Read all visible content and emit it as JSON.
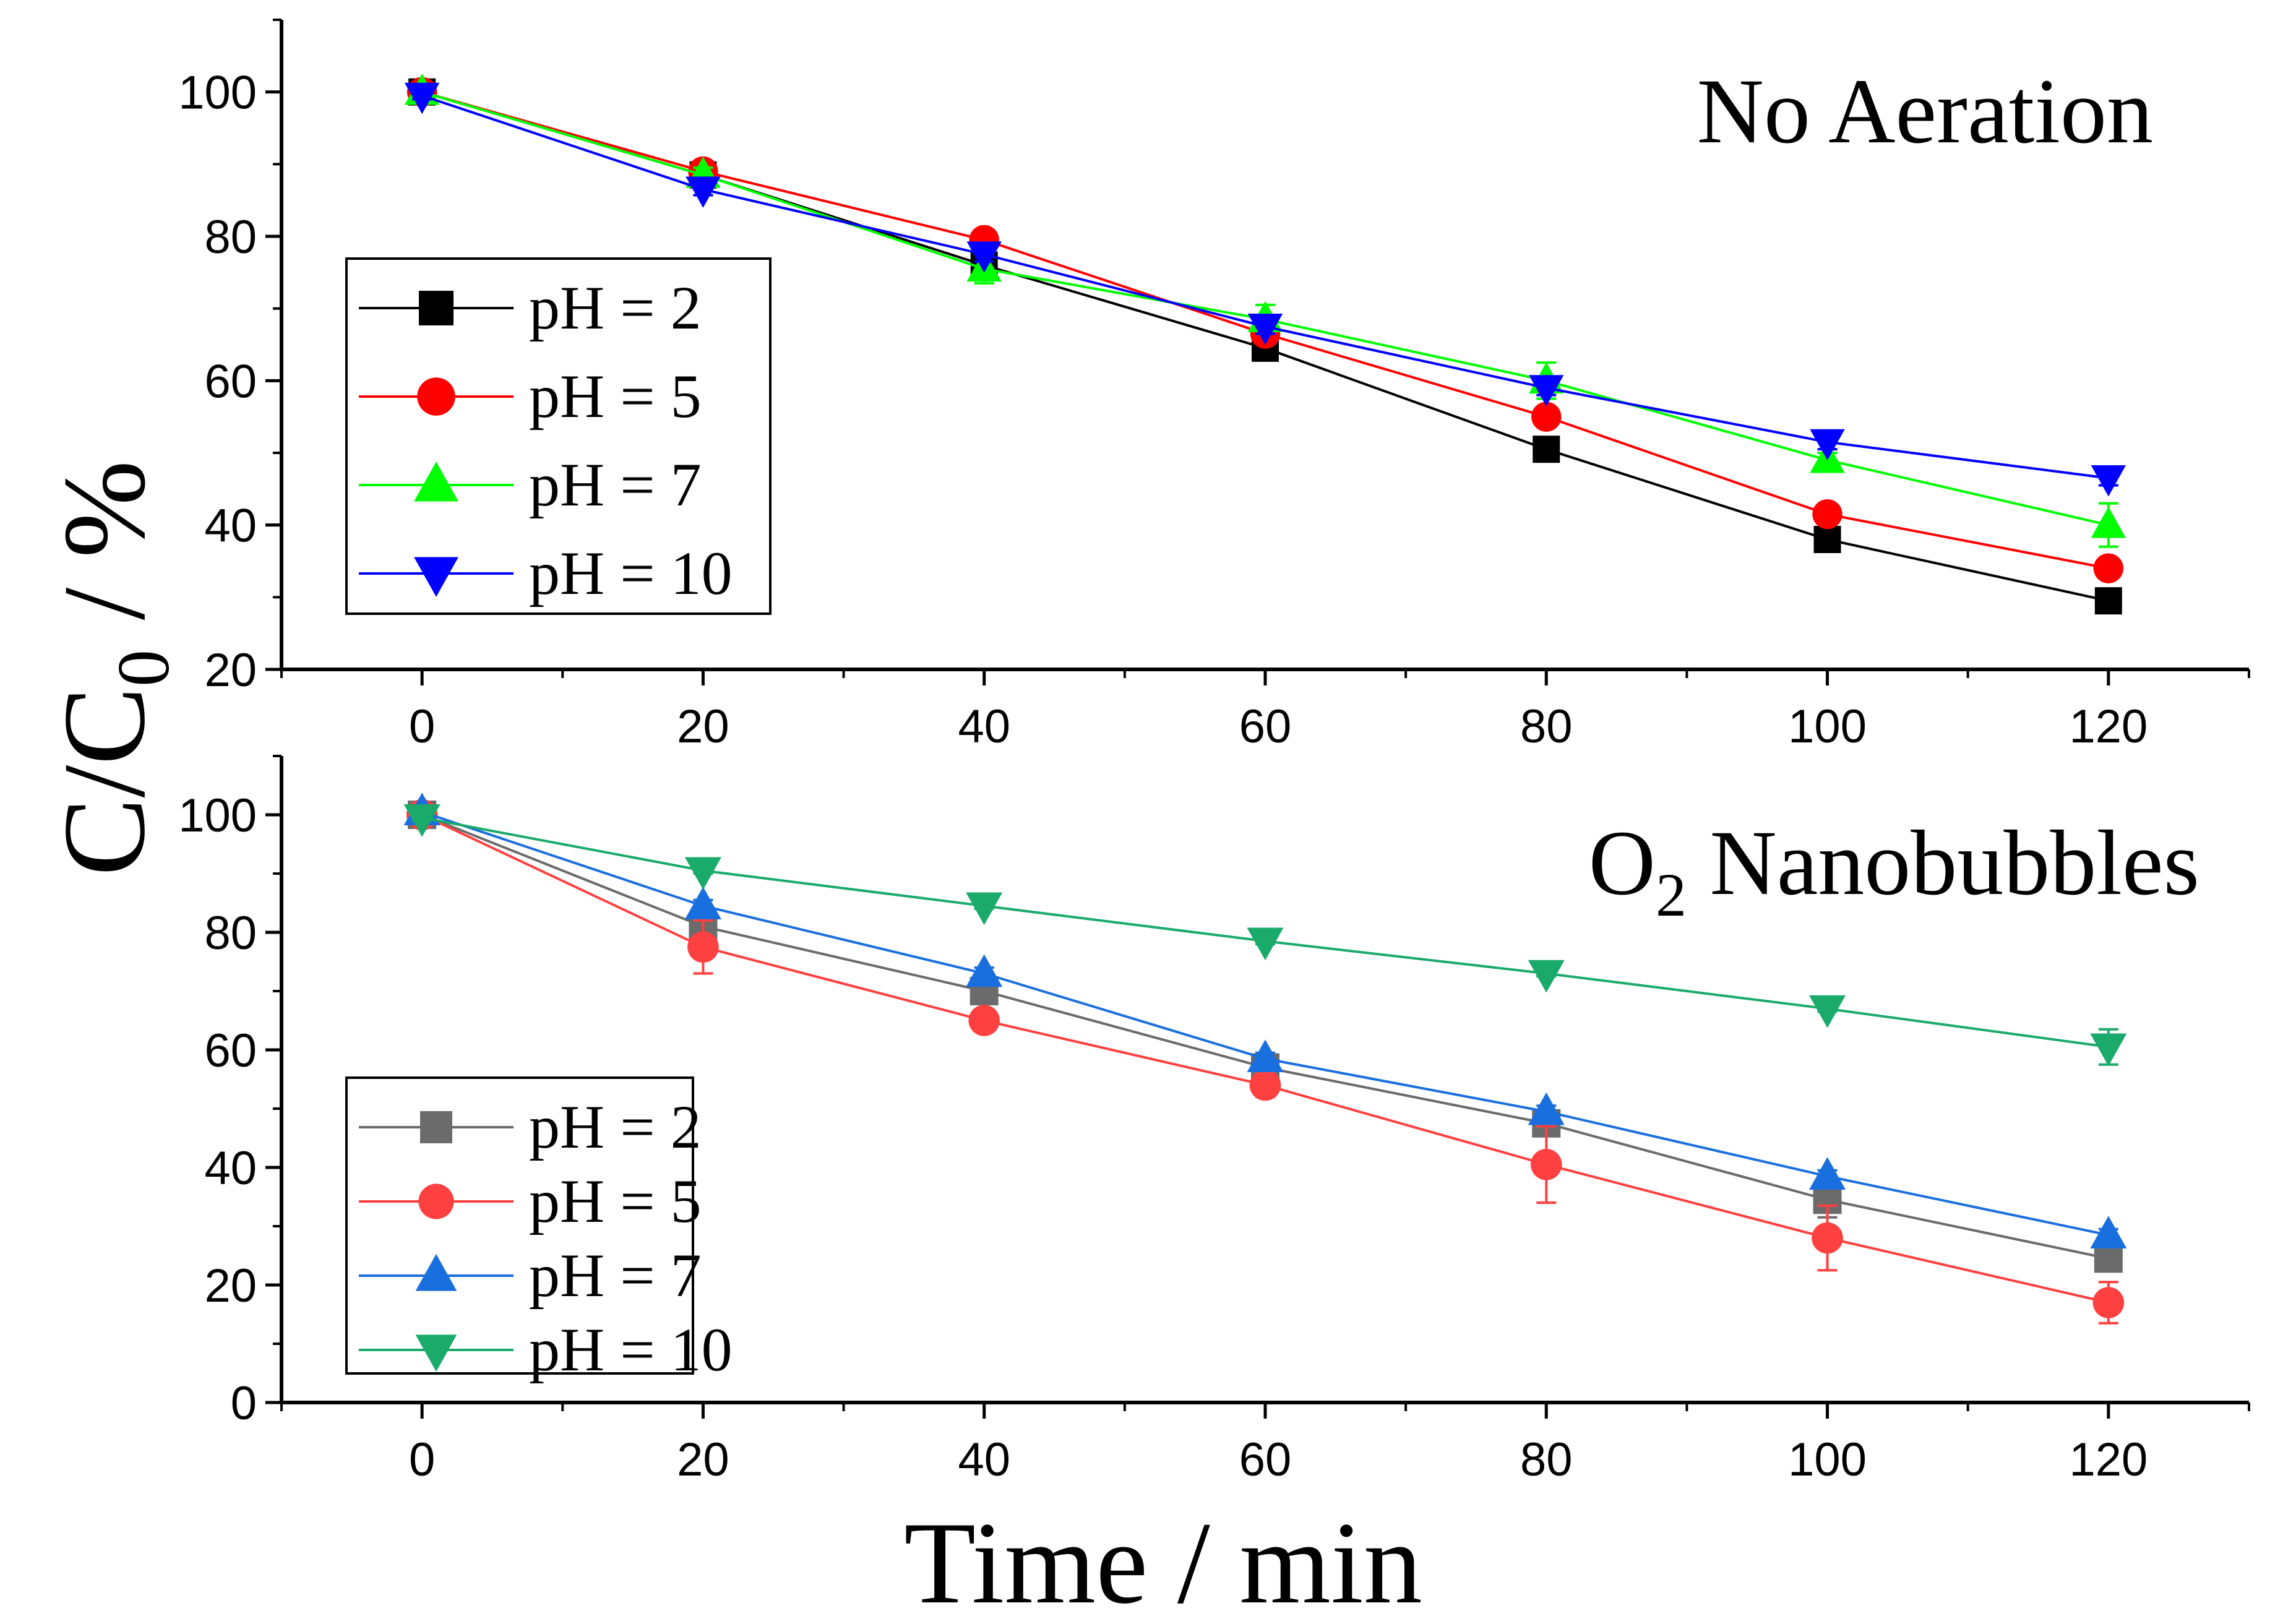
{
  "figure": {
    "ylabel_main": "C/C",
    "ylabel_sub": "0",
    "ylabel_tail": " / %",
    "xlabel": "Time / min"
  },
  "chart_data": [
    {
      "type": "line",
      "title": "No Aeration",
      "title_main": "No Aeration",
      "title_sub": "",
      "title_tail": "",
      "xlabel": "Time / min",
      "ylabel": "C/C0 / %",
      "x": [
        0,
        20,
        40,
        60,
        80,
        100,
        120
      ],
      "xlim": [
        -10,
        130
      ],
      "ylim": [
        20,
        110
      ],
      "xticks": [
        0,
        20,
        40,
        60,
        80,
        100,
        120
      ],
      "yticks": [
        20,
        40,
        60,
        80,
        100
      ],
      "legend_position": "middle-left",
      "series": [
        {
          "name": "pH = 2",
          "marker": "square",
          "color": "#000000",
          "values": [
            100,
            88.5,
            76,
            64.5,
            50.5,
            38,
            29.5
          ],
          "errors": [
            0.5,
            0.8,
            1.0,
            1.0,
            1.0,
            1.0,
            1.0
          ]
        },
        {
          "name": "pH = 5",
          "marker": "circle",
          "color": "#ff0000",
          "values": [
            100,
            89,
            79.5,
            66.5,
            55,
            41.5,
            34
          ],
          "errors": [
            0.5,
            0.8,
            1.0,
            1.0,
            1.0,
            1.0,
            1.0
          ]
        },
        {
          "name": "pH = 7",
          "marker": "triangle-up",
          "color": "#00ff00",
          "values": [
            100,
            88.5,
            75.5,
            68.5,
            60,
            49,
            40
          ],
          "errors": [
            0.8,
            1.0,
            2.0,
            2.0,
            2.5,
            1.0,
            3.0
          ]
        },
        {
          "name": "pH = 10",
          "marker": "triangle-down",
          "color": "#0000ff",
          "values": [
            99.5,
            86.5,
            77.5,
            67.5,
            59,
            51.5,
            46.5
          ],
          "errors": [
            0.5,
            0.8,
            1.0,
            1.0,
            1.0,
            1.0,
            1.0
          ]
        }
      ]
    },
    {
      "type": "line",
      "title": "O2 Nanobubbles",
      "title_main": "O",
      "title_sub": "2",
      "title_tail": " Nanobubbles",
      "xlabel": "Time / min",
      "ylabel": "C/C0 / %",
      "x": [
        0,
        20,
        40,
        60,
        80,
        100,
        120
      ],
      "xlim": [
        -10,
        130
      ],
      "ylim": [
        0,
        110
      ],
      "xticks": [
        0,
        20,
        40,
        60,
        80,
        100,
        120
      ],
      "yticks": [
        0,
        20,
        40,
        60,
        80,
        100
      ],
      "legend_position": "bottom-left",
      "series": [
        {
          "name": "pH = 2",
          "marker": "square",
          "color": "#6b6b6b",
          "values": [
            100,
            81,
            70,
            57,
            47.5,
            34.5,
            24.5
          ],
          "errors": [
            0.5,
            1.5,
            1.0,
            1.0,
            1.0,
            3.0,
            1.0
          ]
        },
        {
          "name": "pH = 5",
          "marker": "circle",
          "color": "#ff4040",
          "values": [
            100,
            77.5,
            65,
            54,
            40.5,
            28,
            17
          ],
          "errors": [
            0.5,
            4.5,
            1.0,
            2.0,
            6.5,
            5.5,
            3.5
          ]
        },
        {
          "name": "pH = 7",
          "marker": "triangle-up",
          "color": "#1a6fdf",
          "values": [
            100.5,
            84.5,
            73,
            58.5,
            49.5,
            38.5,
            28.5
          ],
          "errors": [
            0.5,
            1.0,
            1.0,
            1.0,
            1.0,
            1.0,
            1.0
          ]
        },
        {
          "name": "pH = 10",
          "marker": "triangle-down",
          "color": "#1aaa6a",
          "values": [
            99.5,
            90.5,
            84.5,
            78.5,
            73,
            67,
            60.5
          ],
          "errors": [
            0.5,
            0.5,
            0.5,
            0.5,
            0.5,
            0.5,
            3.0
          ]
        }
      ]
    }
  ]
}
